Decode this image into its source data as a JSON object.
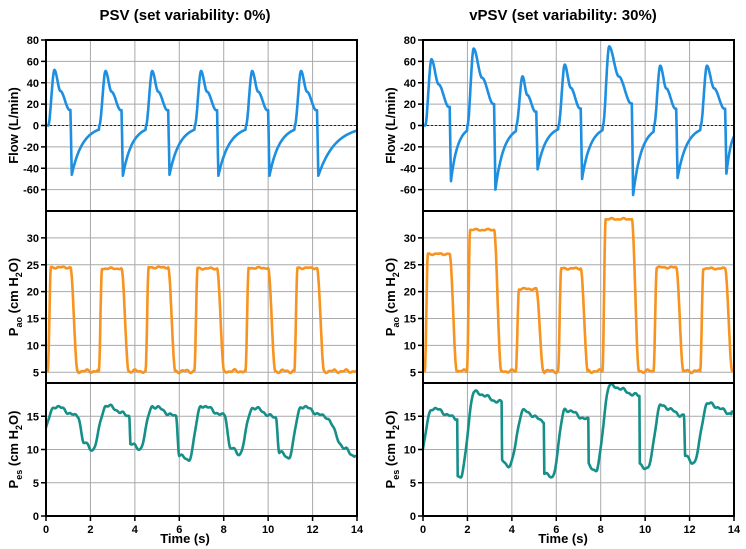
{
  "chart_data": {
    "type": "line",
    "x_axis": {
      "label": "Time (s)",
      "range": [
        0,
        14
      ],
      "ticks": [
        0,
        2,
        4,
        6,
        8,
        10,
        12,
        14
      ],
      "ticklabels": [
        "0",
        "2",
        "4",
        "6",
        "8",
        "10",
        "12",
        "14"
      ]
    },
    "rows": [
      {
        "key": "flow",
        "ylabel": {
          "text": "Flow (L/min)",
          "parts": []
        },
        "ylim": [
          -80,
          80
        ],
        "ticks": [
          -60,
          -40,
          -20,
          0,
          20,
          40,
          60,
          80
        ],
        "ticklabels": [
          "-60",
          "-40",
          "-20",
          "0",
          "20",
          "40",
          "60",
          "80"
        ],
        "zero_line": true,
        "color": "#1e8fe0"
      },
      {
        "key": "pao",
        "ylabel": {
          "text": "",
          "parts": [
            [
              "P",
              ""
            ],
            [
              "ao",
              "sub"
            ],
            [
              " (cm H",
              ""
            ],
            [
              "2",
              "sub"
            ],
            [
              "O)",
              ""
            ]
          ]
        },
        "ylim": [
          3,
          35
        ],
        "ticks": [
          5,
          10,
          15,
          20,
          25,
          30
        ],
        "ticklabels": [
          "5",
          "10",
          "15",
          "20",
          "25",
          "30"
        ],
        "zero_line": false,
        "color": "#f7931e"
      },
      {
        "key": "pes",
        "ylabel": {
          "text": "",
          "parts": [
            [
              "P",
              ""
            ],
            [
              "es",
              "sub"
            ],
            [
              " (cm H",
              ""
            ],
            [
              "2",
              "sub"
            ],
            [
              "O)",
              ""
            ]
          ]
        },
        "ylim": [
          0,
          20
        ],
        "ticks": [
          0,
          5,
          10,
          15
        ],
        "ticklabels": [
          "0",
          "5",
          "10",
          "15"
        ],
        "zero_line": false,
        "color": "#168f89"
      }
    ],
    "columns": [
      {
        "title": "PSV (set variability: 0%)",
        "breaths": [
          {
            "start": 0.1,
            "ti": 1.0,
            "flow_peak": 52,
            "flow_min": -46,
            "pao_peak": 24.5,
            "pes_high": 16.5,
            "pes_low": 10.0
          },
          {
            "start": 2.4,
            "ti": 1.0,
            "flow_peak": 51,
            "flow_min": -47,
            "pao_peak": 24.3,
            "pes_high": 16.6,
            "pes_low": 10.0
          },
          {
            "start": 4.5,
            "ti": 1.0,
            "flow_peak": 51,
            "flow_min": -46,
            "pao_peak": 24.5,
            "pes_high": 16.5,
            "pes_low": 8.3
          },
          {
            "start": 6.7,
            "ti": 1.0,
            "flow_peak": 51,
            "flow_min": -47,
            "pao_peak": 24.3,
            "pes_high": 16.6,
            "pes_low": 9.3
          },
          {
            "start": 9.0,
            "ti": 1.0,
            "flow_peak": 51,
            "flow_min": -47,
            "pao_peak": 24.4,
            "pes_high": 16.3,
            "pes_low": 8.7
          },
          {
            "start": 11.2,
            "ti": 1.0,
            "flow_peak": 51,
            "flow_min": -47,
            "pao_peak": 24.4,
            "pes_high": 16.5,
            "pes_low": 9.0
          }
        ],
        "end_value": {
          "flow": 0,
          "pao": 4.8,
          "pes": 9.0
        }
      },
      {
        "title": "vPSV (set variability: 30%)",
        "breaths": [
          {
            "start": 0.1,
            "ti": 1.1,
            "flow_peak": 62,
            "flow_min": -52,
            "pao_peak": 27.0,
            "pes_high": 16.2,
            "pes_low": 5.8
          },
          {
            "start": 2.0,
            "ti": 1.2,
            "flow_peak": 72,
            "flow_min": -60,
            "pao_peak": 31.5,
            "pes_high": 18.6,
            "pes_low": 7.5
          },
          {
            "start": 4.2,
            "ti": 0.9,
            "flow_peak": 46,
            "flow_min": -41,
            "pao_peak": 20.5,
            "pes_high": 15.8,
            "pes_low": 5.7
          },
          {
            "start": 6.1,
            "ti": 1.0,
            "flow_peak": 57,
            "flow_min": -50,
            "pao_peak": 24.3,
            "pes_high": 16.0,
            "pes_low": 6.8
          },
          {
            "start": 8.1,
            "ti": 1.3,
            "flow_peak": 74,
            "flow_min": -65,
            "pao_peak": 33.5,
            "pes_high": 19.6,
            "pes_low": 7.0
          },
          {
            "start": 10.4,
            "ti": 1.0,
            "flow_peak": 56,
            "flow_min": -49,
            "pao_peak": 24.5,
            "pes_high": 16.6,
            "pes_low": 8.0
          },
          {
            "start": 12.5,
            "ti": 1.1,
            "flow_peak": 56,
            "flow_min": -45,
            "pao_peak": 24.3,
            "pes_high": 16.9,
            "pes_low": 7.5
          }
        ],
        "end_value": {
          "flow": -39,
          "pao": 5.8,
          "pes": 15.7
        }
      }
    ]
  }
}
